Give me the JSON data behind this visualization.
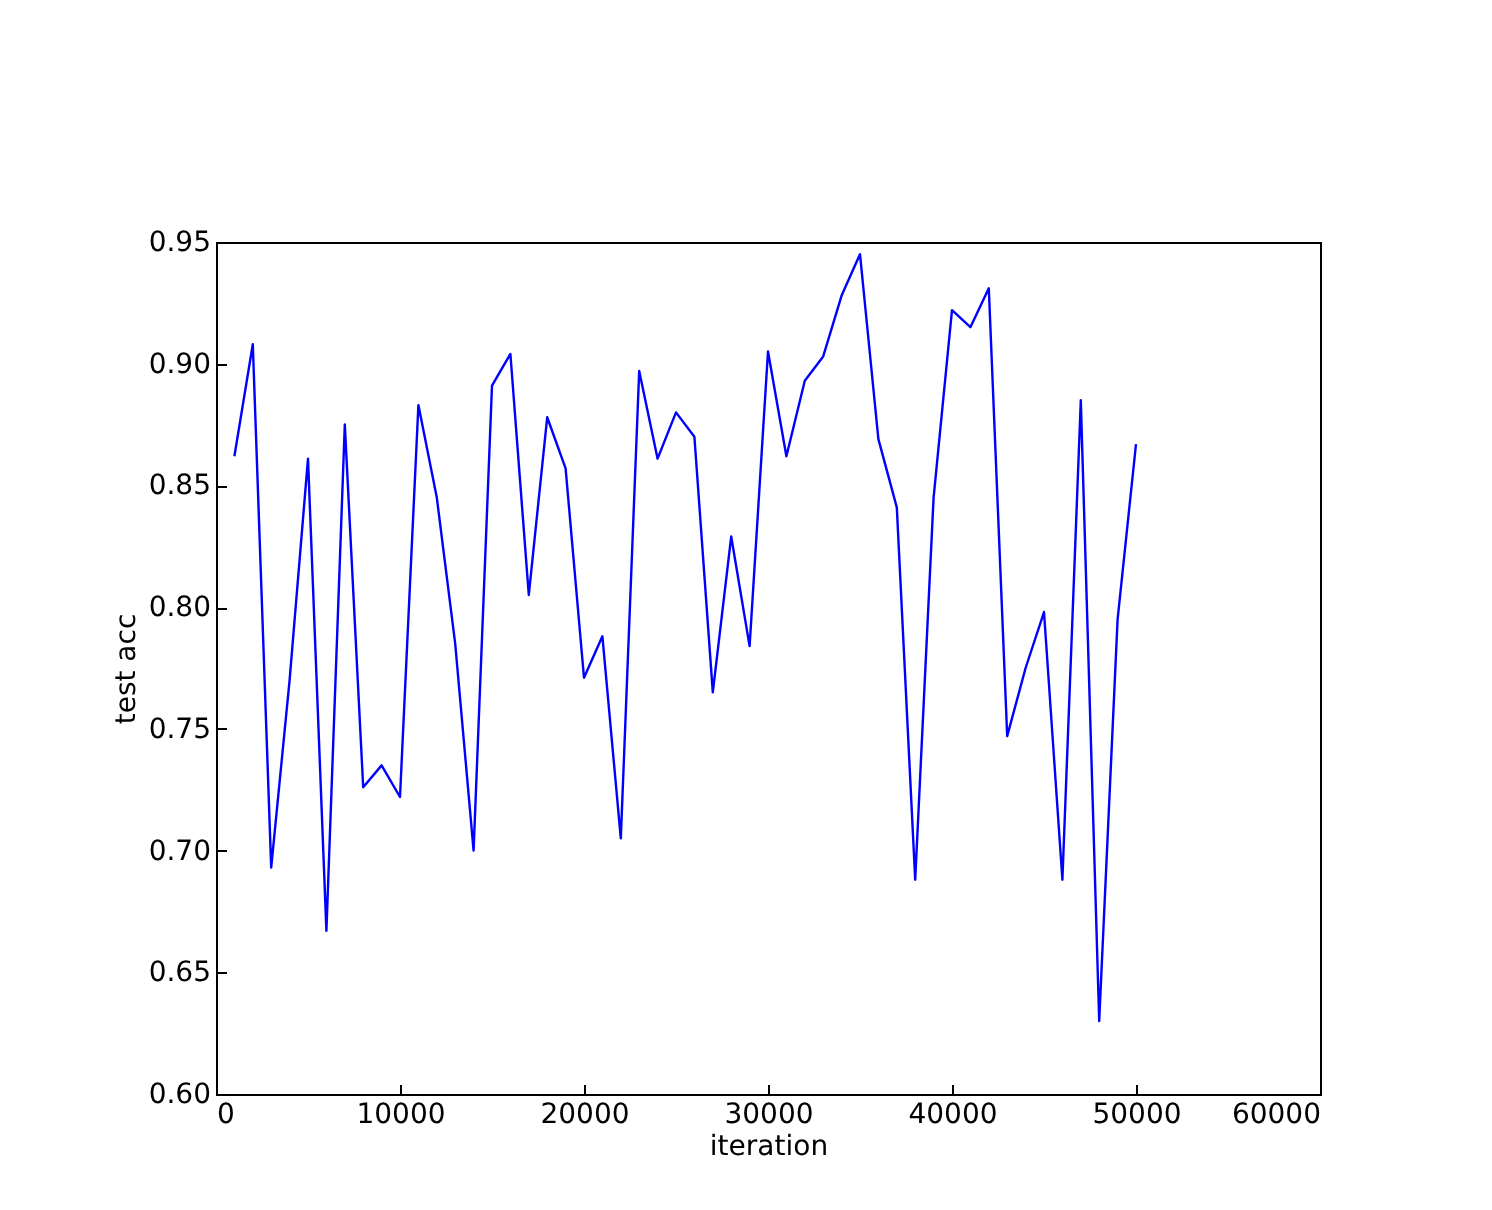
{
  "chart_data": {
    "type": "line",
    "xlabel": "iteration",
    "ylabel": "test acc",
    "x": [
      1000,
      2000,
      3000,
      4000,
      5000,
      6000,
      7000,
      8000,
      9000,
      10000,
      11000,
      12000,
      13000,
      14000,
      15000,
      16000,
      17000,
      18000,
      19000,
      20000,
      21000,
      22000,
      23000,
      24000,
      25000,
      26000,
      27000,
      28000,
      29000,
      30000,
      31000,
      32000,
      33000,
      34000,
      35000,
      36000,
      37000,
      38000,
      39000,
      40000,
      41000,
      42000,
      43000,
      44000,
      45000,
      46000,
      47000,
      48000,
      49000,
      50000
    ],
    "series": [
      {
        "color": "#0000ff",
        "values": [
          0.862,
          0.908,
          0.693,
          0.77,
          0.861,
          0.667,
          0.875,
          0.726,
          0.735,
          0.722,
          0.883,
          0.845,
          0.785,
          0.7,
          0.891,
          0.904,
          0.805,
          0.878,
          0.857,
          0.771,
          0.788,
          0.705,
          0.897,
          0.861,
          0.88,
          0.87,
          0.765,
          0.829,
          0.784,
          0.905,
          0.862,
          0.893,
          0.903,
          0.928,
          0.945,
          0.869,
          0.841,
          0.688,
          0.845,
          0.922,
          0.915,
          0.931,
          0.747,
          0.775,
          0.798,
          0.688,
          0.885,
          0.63,
          0.795,
          0.867
        ]
      }
    ],
    "xlim": [
      0,
      60000
    ],
    "xticks": [
      0,
      10000,
      20000,
      30000,
      40000,
      50000,
      60000
    ],
    "ylim": [
      0.6,
      0.95
    ],
    "yticks": [
      {
        "value": 0.6,
        "label": "0.60"
      },
      {
        "value": 0.65,
        "label": "0.65"
      },
      {
        "value": 0.7,
        "label": "0.70"
      },
      {
        "value": 0.75,
        "label": "0.75"
      },
      {
        "value": 0.8,
        "label": "0.80"
      },
      {
        "value": 0.85,
        "label": "0.85"
      },
      {
        "value": 0.9,
        "label": "0.90"
      },
      {
        "value": 0.95,
        "label": "0.95"
      }
    ],
    "grid": false,
    "marker": "none",
    "line_style": "solid"
  }
}
